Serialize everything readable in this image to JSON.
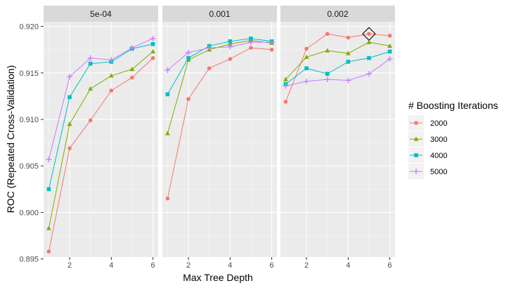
{
  "chart_data": {
    "type": "line",
    "xlabel": "Max Tree Depth",
    "ylabel": "ROC (Repeated Cross-Validation)",
    "x": [
      1,
      2,
      3,
      4,
      5,
      6
    ],
    "xlim": [
      0.75,
      6.25
    ],
    "ylim": [
      0.8952,
      0.9205
    ],
    "xticks": [
      "2",
      "4",
      "6"
    ],
    "yticks": [
      "0.895",
      "0.900",
      "0.905",
      "0.910",
      "0.915",
      "0.920"
    ],
    "grid": true,
    "legend": {
      "title": "# Boosting Iterations",
      "placement": "right",
      "entries": [
        "2000",
        "3000",
        "4000",
        "5000"
      ]
    },
    "colors": [
      "#F8766D",
      "#7CAE00",
      "#00BFC4",
      "#C77CFF"
    ],
    "markers": [
      "circle",
      "triangle",
      "square",
      "plus"
    ],
    "panels": [
      {
        "label": "5e-04",
        "series": [
          {
            "name": "2000",
            "values": [
              0.8958,
              0.9069,
              0.9099,
              0.9131,
              0.9145,
              0.9166
            ]
          },
          {
            "name": "3000",
            "values": [
              0.8983,
              0.9095,
              0.9133,
              0.9147,
              0.9154,
              0.9173
            ]
          },
          {
            "name": "4000",
            "values": [
              0.9025,
              0.9124,
              0.916,
              0.9162,
              0.9176,
              0.9181
            ]
          },
          {
            "name": "5000",
            "values": [
              0.9057,
              0.9146,
              0.9166,
              0.9164,
              0.9177,
              0.9187
            ]
          }
        ]
      },
      {
        "label": "0.001",
        "series": [
          {
            "name": "2000",
            "values": [
              0.9015,
              0.9122,
              0.9155,
              0.9165,
              0.9177,
              0.9175
            ]
          },
          {
            "name": "3000",
            "values": [
              0.9085,
              0.9164,
              0.9175,
              0.9181,
              0.9185,
              0.9182
            ]
          },
          {
            "name": "4000",
            "values": [
              0.9127,
              0.9166,
              0.9179,
              0.9184,
              0.9187,
              0.9184
            ]
          },
          {
            "name": "5000",
            "values": [
              0.9153,
              0.9172,
              0.9177,
              0.9178,
              0.9183,
              0.9183
            ]
          }
        ]
      },
      {
        "label": "0.002",
        "series": [
          {
            "name": "2000",
            "values": [
              0.9119,
              0.9176,
              0.9192,
              0.9188,
              0.9192,
              0.919
            ]
          },
          {
            "name": "3000",
            "values": [
              0.9143,
              0.9167,
              0.9174,
              0.9171,
              0.9183,
              0.9179
            ]
          },
          {
            "name": "4000",
            "values": [
              0.9138,
              0.9155,
              0.9149,
              0.9162,
              0.9166,
              0.9173
            ]
          },
          {
            "name": "5000",
            "values": [
              0.9136,
              0.9141,
              0.9143,
              0.9142,
              0.9149,
              0.9165
            ]
          }
        ]
      }
    ],
    "highlight": {
      "panel": "0.002",
      "x": 5,
      "y": 0.9192,
      "shape": "diamond"
    }
  }
}
